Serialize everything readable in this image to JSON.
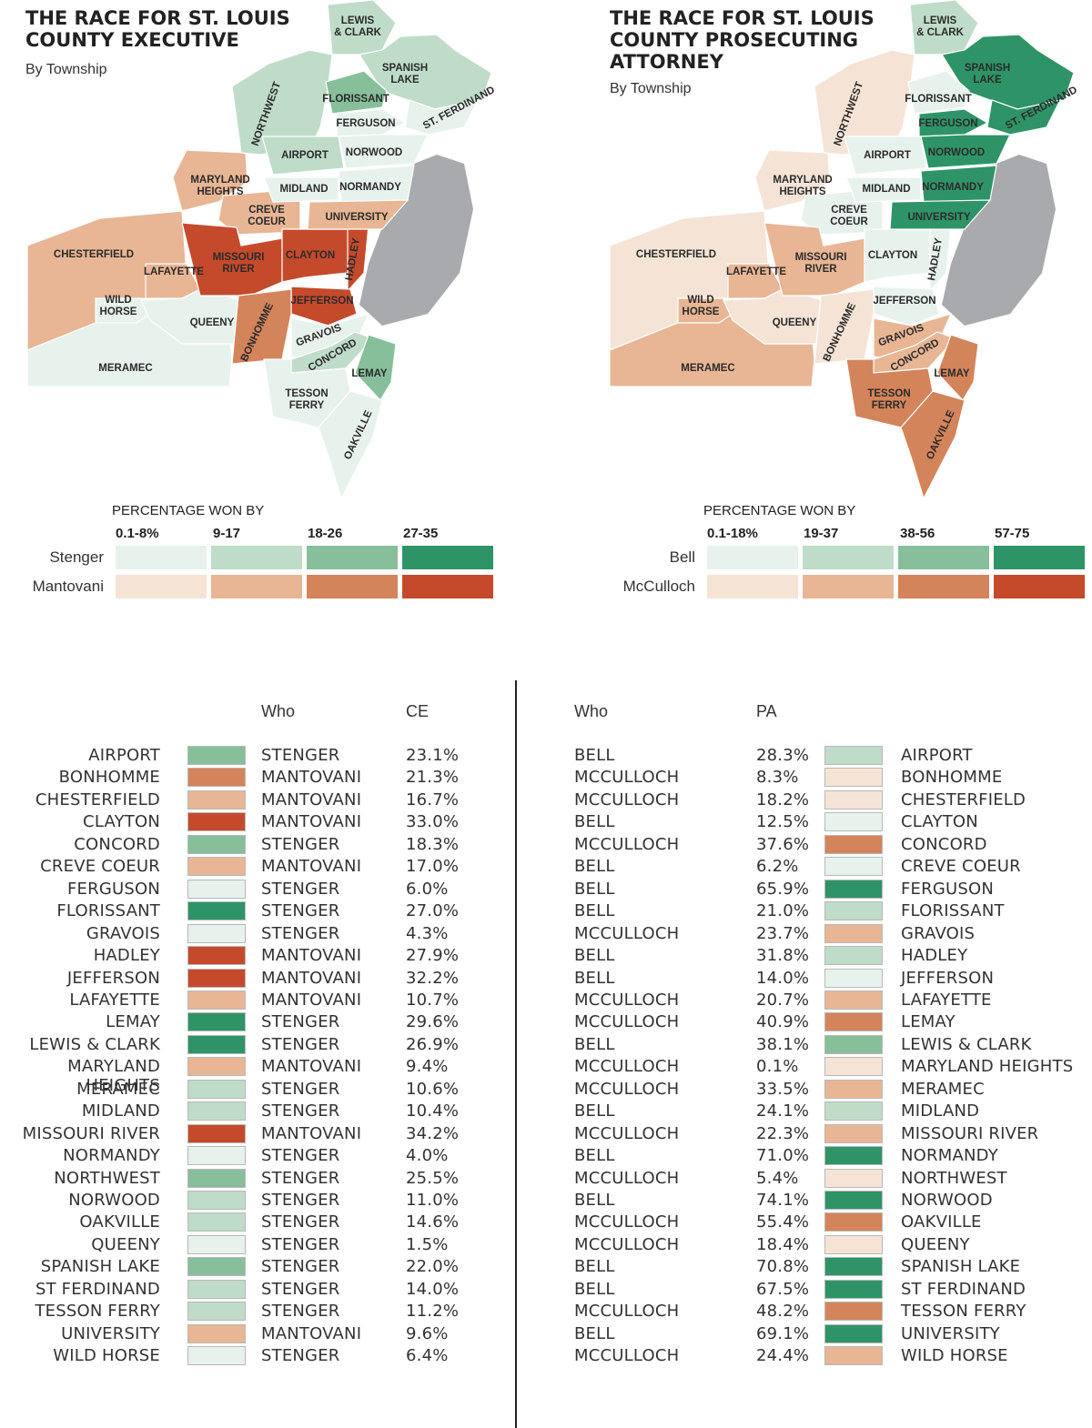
{
  "ce": {
    "title": "THE RACE FOR ST. LOUIS\nCOUNTY EXECUTIVE",
    "subtitle": "By Township",
    "legend_heading": "PERCENTAGE WON BY",
    "bins": [
      "0.1-8%",
      "9-17",
      "18-26",
      "27-35"
    ],
    "cand1": "Stenger",
    "cand2": "Mantovani",
    "col_who": "Who",
    "col_val": "CE"
  },
  "pa": {
    "title": "THE RACE FOR ST. LOUIS\nCOUNTY PROSECUTING\nATTORNEY",
    "subtitle": "By Township",
    "legend_heading": "PERCENTAGE WON BY",
    "bins": [
      "0.1-18%",
      "19-37",
      "38-56",
      "57-75"
    ],
    "cand1": "Bell",
    "cand2": "McCulloch",
    "col_who": "Who",
    "col_val": "PA"
  },
  "colors": {
    "green": [
      "#e8f2ec",
      "#bfdcc9",
      "#86bf9a",
      "#2e9467"
    ],
    "orange": [
      "#f5e4d6",
      "#e8b694",
      "#d4845a",
      "#c54a2c"
    ],
    "river": "#a9aaad"
  },
  "townships": [
    {
      "name": "AIRPORT",
      "ce_who": "STENGER",
      "ce": "23.1%",
      "pa_who": "BELL",
      "pa": "28.3%"
    },
    {
      "name": "BONHOMME",
      "ce_who": "MANTOVANI",
      "ce": "21.3%",
      "pa_who": "MCCULLOCH",
      "pa": "8.3%"
    },
    {
      "name": "CHESTERFIELD",
      "ce_who": "MANTOVANI",
      "ce": "16.7%",
      "pa_who": "MCCULLOCH",
      "pa": "18.2%"
    },
    {
      "name": "CLAYTON",
      "ce_who": "MANTOVANI",
      "ce": "33.0%",
      "pa_who": "BELL",
      "pa": "12.5%"
    },
    {
      "name": "CONCORD",
      "ce_who": "STENGER",
      "ce": "18.3%",
      "pa_who": "MCCULLOCH",
      "pa": "37.6%"
    },
    {
      "name": "CREVE COEUR",
      "ce_who": "MANTOVANI",
      "ce": "17.0%",
      "pa_who": "BELL",
      "pa": "6.2%"
    },
    {
      "name": "FERGUSON",
      "ce_who": "STENGER",
      "ce": "6.0%",
      "pa_who": "BELL",
      "pa": "65.9%"
    },
    {
      "name": "FLORISSANT",
      "ce_who": "STENGER",
      "ce": "27.0%",
      "pa_who": "BELL",
      "pa": "21.0%"
    },
    {
      "name": "GRAVOIS",
      "ce_who": "STENGER",
      "ce": "4.3%",
      "pa_who": "MCCULLOCH",
      "pa": "23.7%"
    },
    {
      "name": "HADLEY",
      "ce_who": "MANTOVANI",
      "ce": "27.9%",
      "pa_who": "BELL",
      "pa": "31.8%"
    },
    {
      "name": "JEFFERSON",
      "ce_who": "MANTOVANI",
      "ce": "32.2%",
      "pa_who": "BELL",
      "pa": "14.0%"
    },
    {
      "name": "LAFAYETTE",
      "ce_who": "MANTOVANI",
      "ce": "10.7%",
      "pa_who": "MCCULLOCH",
      "pa": "20.7%"
    },
    {
      "name": "LEMAY",
      "ce_who": "STENGER",
      "ce": "29.6%",
      "pa_who": "MCCULLOCH",
      "pa": "40.9%"
    },
    {
      "name": "LEWIS & CLARK",
      "ce_who": "STENGER",
      "ce": "26.9%",
      "pa_who": "BELL",
      "pa": "38.1%"
    },
    {
      "name": "MARYLAND HEIGHTS",
      "ce_who": "MANTOVANI",
      "ce": "9.4%",
      "pa_who": "MCCULLOCH",
      "pa": "0.1%"
    },
    {
      "name": "MERAMEC",
      "ce_who": "STENGER",
      "ce": "10.6%",
      "pa_who": "MCCULLOCH",
      "pa": "33.5%"
    },
    {
      "name": "MIDLAND",
      "ce_who": "STENGER",
      "ce": "10.4%",
      "pa_who": "BELL",
      "pa": "24.1%"
    },
    {
      "name": "MISSOURI RIVER",
      "ce_who": "MANTOVANI",
      "ce": "34.2%",
      "pa_who": "MCCULLOCH",
      "pa": "22.3%"
    },
    {
      "name": "NORMANDY",
      "ce_who": "STENGER",
      "ce": "4.0%",
      "pa_who": "BELL",
      "pa": "71.0%"
    },
    {
      "name": "NORTHWEST",
      "ce_who": "STENGER",
      "ce": "25.5%",
      "pa_who": "MCCULLOCH",
      "pa": "5.4%"
    },
    {
      "name": "NORWOOD",
      "ce_who": "STENGER",
      "ce": "11.0%",
      "pa_who": "BELL",
      "pa": "74.1%"
    },
    {
      "name": "OAKVILLE",
      "ce_who": "STENGER",
      "ce": "14.6%",
      "pa_who": "MCCULLOCH",
      "pa": "55.4%"
    },
    {
      "name": "QUEENY",
      "ce_who": "STENGER",
      "ce": "1.5%",
      "pa_who": "MCCULLOCH",
      "pa": "18.4%"
    },
    {
      "name": "SPANISH LAKE",
      "ce_who": "STENGER",
      "ce": "22.0%",
      "pa_who": "BELL",
      "pa": "70.8%"
    },
    {
      "name": "ST FERDINAND",
      "ce_who": "STENGER",
      "ce": "14.0%",
      "pa_who": "BELL",
      "pa": "67.5%"
    },
    {
      "name": "TESSON FERRY",
      "ce_who": "STENGER",
      "ce": "11.2%",
      "pa_who": "MCCULLOCH",
      "pa": "48.2%"
    },
    {
      "name": "UNIVERSITY",
      "ce_who": "MANTOVANI",
      "ce": "9.6%",
      "pa_who": "BELL",
      "pa": "69.1%"
    },
    {
      "name": "WILD HORSE",
      "ce_who": "STENGER",
      "ce": "6.4%",
      "pa_who": "MCCULLOCH",
      "pa": "24.4%"
    }
  ],
  "map_labels": [
    {
      "key": "LEWIS",
      "text": "LEWIS\n& CLARK"
    },
    {
      "key": "SPANISH",
      "text": "SPANISH\nLAKE"
    },
    {
      "key": "NORTHWEST",
      "text": "NORTHWEST"
    },
    {
      "key": "FLORISSANT",
      "text": "FLORISSANT"
    },
    {
      "key": "STFERD",
      "text": "ST. FERDINAND"
    },
    {
      "key": "FERGUSON",
      "text": "FERGUSON"
    },
    {
      "key": "AIRPORT",
      "text": "AIRPORT"
    },
    {
      "key": "NORWOOD",
      "text": "NORWOOD"
    },
    {
      "key": "MARYLAND",
      "text": "MARYLAND\nHEIGHTS"
    },
    {
      "key": "MIDLAND",
      "text": "MIDLAND"
    },
    {
      "key": "NORMANDY",
      "text": "NORMANDY"
    },
    {
      "key": "CREVE",
      "text": "CREVE\nCOEUR"
    },
    {
      "key": "UNIVERSITY",
      "text": "UNIVERSITY"
    },
    {
      "key": "CHESTERFIELD",
      "text": "CHESTERFIELD"
    },
    {
      "key": "MISSOURI",
      "text": "MISSOURI\nRIVER"
    },
    {
      "key": "CLAYTON",
      "text": "CLAYTON"
    },
    {
      "key": "HADLEY",
      "text": "HADLEY"
    },
    {
      "key": "LAFAYETTE",
      "text": "LAFAYETTE"
    },
    {
      "key": "WILD",
      "text": "WILD\nHORSE"
    },
    {
      "key": "QUEENY",
      "text": "QUEENY"
    },
    {
      "key": "JEFFERSON",
      "text": "JEFFERSON"
    },
    {
      "key": "BONHOMME",
      "text": "BONHOMME"
    },
    {
      "key": "GRAVOIS",
      "text": "GRAVOIS"
    },
    {
      "key": "CONCORD",
      "text": "CONCORD"
    },
    {
      "key": "MERAMEC",
      "text": "MERAMEC"
    },
    {
      "key": "LEMAY",
      "text": "LEMAY"
    },
    {
      "key": "TESSON",
      "text": "TESSON\nFERRY"
    },
    {
      "key": "OAKVILLE",
      "text": "OAKVILLE"
    }
  ],
  "map_fill": {
    "ce": {
      "LEWIS": 2,
      "SPANISH": 2,
      "NORTHWEST": 2,
      "FLORISSANT": 3,
      "STFERD": 1,
      "FERGUSON": 0,
      "AIRPORT": 2,
      "NORWOOD": 1,
      "MARYLAND": -2,
      "MIDLAND": 1,
      "NORMANDY": 0,
      "CREVE": -2,
      "UNIVERSITY": -2,
      "CHESTERFIELD": -2,
      "MISSOURI": -4,
      "CLAYTON": -4,
      "HADLEY": -4,
      "LAFAYETTE": -2,
      "WILD": 0,
      "QUEENY": 0,
      "JEFFERSON": -4,
      "BONHOMME": -3,
      "GRAVOIS": 0,
      "CONCORD": 2,
      "MERAMEC": 1,
      "LEMAY": 3,
      "TESSON": 1,
      "OAKVILLE": 1
    },
    "pa": {
      "LEWIS": 2,
      "SPANISH": 4,
      "NORTHWEST": -1,
      "FLORISSANT": 1,
      "STFERD": 4,
      "FERGUSON": 4,
      "AIRPORT": 1,
      "NORWOOD": 4,
      "MARYLAND": -1,
      "MIDLAND": 1,
      "NORMANDY": 4,
      "CREVE": 0,
      "UNIVERSITY": 4,
      "CHESTERFIELD": -1,
      "MISSOURI": -2,
      "CLAYTON": 0,
      "HADLEY": 1,
      "LAFAYETTE": -2,
      "WILD": -2,
      "QUEENY": -1,
      "JEFFERSON": 0,
      "BONHOMME": -1,
      "GRAVOIS": -2,
      "CONCORD": -2,
      "MERAMEC": -2,
      "LEMAY": -3,
      "TESSON": -3,
      "OAKVILLE": -3
    }
  }
}
